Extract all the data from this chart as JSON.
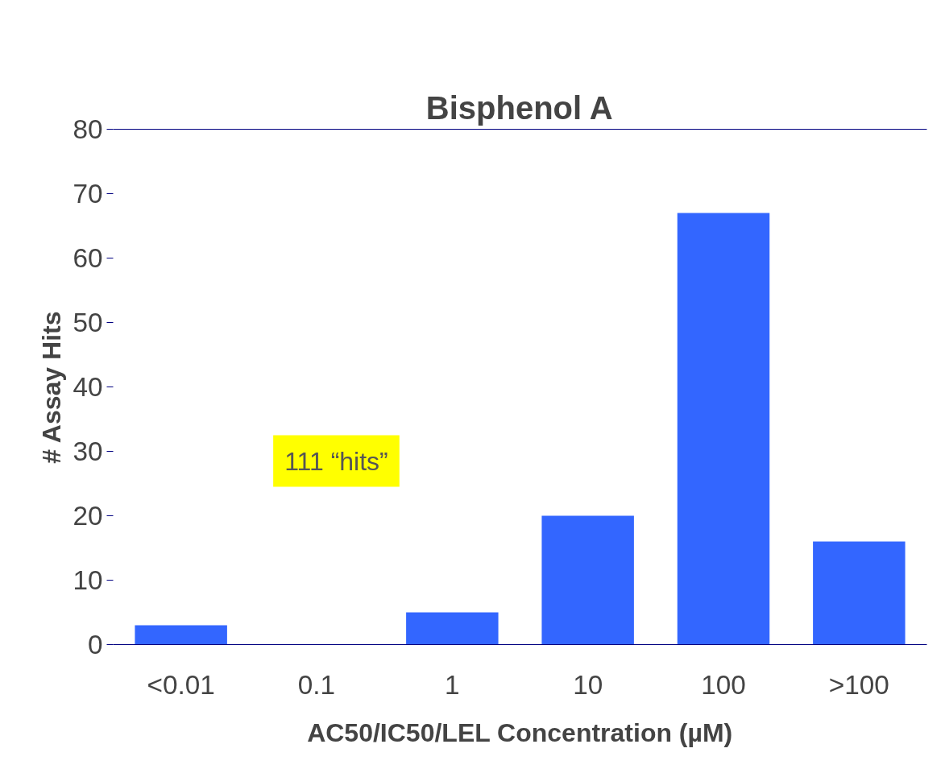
{
  "chart_data": {
    "type": "bar",
    "title": "Bisphenol A",
    "xlabel": "AC50/IC50/LEL Concentration (µM)",
    "ylabel": "# Assay Hits",
    "categories": [
      "<0.01",
      "0.1",
      "1",
      "10",
      "100",
      ">100"
    ],
    "values": [
      3,
      0,
      5,
      20,
      67,
      16
    ],
    "color": "#3366ff",
    "ylim": [
      0,
      80
    ],
    "yticks": [
      0,
      10,
      20,
      30,
      40,
      50,
      60,
      70,
      80
    ],
    "grid": false,
    "annotations": [
      "111 “hits”"
    ]
  }
}
